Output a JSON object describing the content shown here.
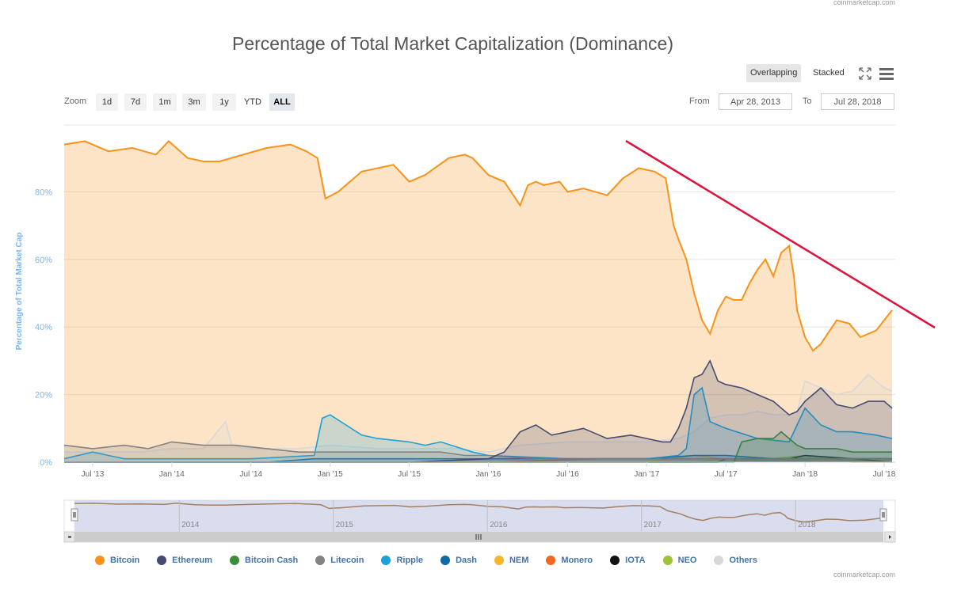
{
  "source": "coinmarketcap.com",
  "toolbar": {
    "zoom_label": "Zoom",
    "zoom_buttons": [
      "1d",
      "7d",
      "1m",
      "3m",
      "1y",
      "YTD",
      "ALL"
    ],
    "active_zoom": "ALL",
    "mode_overlapping": "Overlapping",
    "mode_stacked": "Stacked",
    "from_label": "From",
    "to_label": "To",
    "from_value": "Apr 28, 2013",
    "to_value": "Jul 28, 2018"
  },
  "chart_data": {
    "type": "area",
    "title": "Percentage of Total Market Capitalization (Dominance)",
    "ylabel": "Percentage of Total Market Cap",
    "xlabel": "",
    "ylim": [
      0,
      100
    ],
    "y_ticks": [
      "0%",
      "20%",
      "40%",
      "60%",
      "80%"
    ],
    "x_ticks": [
      "Jul '13",
      "Jan '14",
      "Jul '14",
      "Jan '15",
      "Jul '15",
      "Jan '16",
      "Jul '16",
      "Jan '17",
      "Jul '17",
      "Jan '18",
      "Jul '18"
    ],
    "x_start": "2013-04-28",
    "x_end": "2018-07-28",
    "legend_position": "bottom",
    "series": [
      {
        "name": "Bitcoin",
        "color": "#f7931a",
        "x": [
          2013.32,
          2013.45,
          2013.6,
          2013.75,
          2013.9,
          2013.98,
          2014.1,
          2014.2,
          2014.3,
          2014.45,
          2014.6,
          2014.75,
          2014.85,
          2014.92,
          2014.97,
          2015.05,
          2015.2,
          2015.4,
          2015.5,
          2015.6,
          2015.75,
          2015.85,
          2015.9,
          2016.0,
          2016.1,
          2016.2,
          2016.25,
          2016.3,
          2016.35,
          2016.45,
          2016.5,
          2016.6,
          2016.75,
          2016.85,
          2016.95,
          2017.05,
          2017.12,
          2017.17,
          2017.2,
          2017.25,
          2017.3,
          2017.35,
          2017.4,
          2017.45,
          2017.5,
          2017.55,
          2017.6,
          2017.65,
          2017.7,
          2017.75,
          2017.8,
          2017.85,
          2017.9,
          2017.93,
          2017.95,
          2018.0,
          2018.05,
          2018.1,
          2018.2,
          2018.28,
          2018.35,
          2018.45,
          2018.55
        ],
        "values": [
          94,
          95,
          92,
          93,
          91,
          95,
          90,
          89,
          89,
          91,
          93,
          94,
          92,
          90,
          78,
          80,
          86,
          88,
          83,
          85,
          90,
          91,
          90,
          85,
          83,
          76,
          82,
          83,
          82,
          83,
          80,
          81,
          79,
          84,
          87,
          86,
          84,
          70,
          66,
          60,
          50,
          42,
          38,
          45,
          49,
          48,
          48,
          53,
          57,
          60,
          55,
          62,
          64,
          55,
          45,
          37,
          33,
          35,
          42,
          41,
          37,
          39,
          45
        ]
      },
      {
        "name": "Ethereum",
        "color": "#454b73",
        "x": [
          2013.32,
          2015.5,
          2016.0,
          2016.1,
          2016.2,
          2016.3,
          2016.4,
          2016.6,
          2016.75,
          2016.9,
          2017.0,
          2017.1,
          2017.15,
          2017.2,
          2017.25,
          2017.3,
          2017.35,
          2017.4,
          2017.45,
          2017.5,
          2017.6,
          2017.7,
          2017.8,
          2017.9,
          2017.95,
          2018.0,
          2018.05,
          2018.1,
          2018.2,
          2018.3,
          2018.4,
          2018.5,
          2018.55
        ],
        "values": [
          0,
          0,
          1,
          3,
          9,
          11,
          8,
          10,
          7,
          8,
          7,
          6,
          6,
          10,
          16,
          25,
          26,
          30,
          24,
          23,
          22,
          20,
          18,
          14,
          15,
          18,
          20,
          22,
          17,
          16,
          18,
          18,
          16
        ]
      },
      {
        "name": "Bitcoin Cash",
        "color": "#3c8c3c",
        "x": [
          2013.32,
          2017.55,
          2017.6,
          2017.7,
          2017.8,
          2017.85,
          2017.9,
          2017.95,
          2018.0,
          2018.1,
          2018.2,
          2018.3,
          2018.4,
          2018.5,
          2018.55
        ],
        "values": [
          0,
          0,
          6,
          7,
          7,
          9,
          7,
          5,
          4,
          4,
          4,
          3,
          3,
          3,
          3
        ]
      },
      {
        "name": "Litecoin",
        "color": "#838383",
        "x": [
          2013.32,
          2013.5,
          2013.7,
          2013.85,
          2014.0,
          2014.2,
          2014.4,
          2014.6,
          2014.8,
          2015.0,
          2015.2,
          2015.5,
          2015.7,
          2015.85,
          2016.0,
          2016.3,
          2016.5,
          2016.8,
          2017.0,
          2017.3,
          2017.6,
          2017.9,
          2018.0,
          2018.3,
          2018.55
        ],
        "values": [
          5,
          4,
          5,
          4,
          6,
          5,
          5,
          4,
          3,
          3,
          3,
          3,
          3,
          2,
          2,
          1,
          1,
          1,
          1,
          1,
          1,
          1,
          1,
          1,
          1
        ]
      },
      {
        "name": "Ripple",
        "color": "#1ba0d8",
        "x": [
          2013.32,
          2013.5,
          2013.6,
          2013.7,
          2014.0,
          2014.5,
          2014.9,
          2014.95,
          2015.0,
          2015.1,
          2015.2,
          2015.3,
          2015.5,
          2015.6,
          2015.7,
          2015.9,
          2016.0,
          2016.5,
          2017.0,
          2017.2,
          2017.25,
          2017.3,
          2017.35,
          2017.4,
          2017.5,
          2017.7,
          2017.9,
          2017.95,
          2018.0,
          2018.1,
          2018.2,
          2018.3,
          2018.45,
          2018.55
        ],
        "values": [
          1,
          3,
          2,
          1,
          1,
          1,
          2,
          13,
          14,
          11,
          8,
          7,
          6,
          5,
          6,
          3,
          2,
          1,
          1,
          2,
          4,
          20,
          22,
          12,
          10,
          7,
          6,
          11,
          16,
          11,
          9,
          9,
          8,
          7
        ]
      },
      {
        "name": "Dash",
        "color": "#0f6aa8",
        "x": [
          2013.32,
          2014.6,
          2014.9,
          2015.5,
          2016.0,
          2016.5,
          2017.0,
          2017.3,
          2017.5,
          2017.8,
          2018.0,
          2018.3,
          2018.55
        ],
        "values": [
          0,
          0,
          1,
          1,
          1,
          1,
          1,
          2,
          2,
          1,
          1,
          1,
          1
        ]
      },
      {
        "name": "NEM",
        "color": "#f7b52d",
        "x": [
          2013.32,
          2015.3,
          2016.0,
          2017.0,
          2017.3,
          2017.5,
          2017.8,
          2018.0,
          2018.3,
          2018.55
        ],
        "values": [
          0,
          0,
          0,
          0,
          2,
          1,
          1,
          1,
          0,
          0
        ]
      },
      {
        "name": "Monero",
        "color": "#f26822",
        "x": [
          2013.32,
          2014.4,
          2015.0,
          2016.0,
          2016.7,
          2017.0,
          2017.5,
          2018.0,
          2018.55
        ],
        "values": [
          0,
          0,
          0,
          0,
          1,
          1,
          1,
          1,
          1
        ]
      },
      {
        "name": "IOTA",
        "color": "#111111",
        "x": [
          2013.32,
          2017.45,
          2017.5,
          2017.9,
          2018.0,
          2018.3,
          2018.55
        ],
        "values": [
          0,
          0,
          1,
          1,
          2,
          1,
          0
        ]
      },
      {
        "name": "NEO",
        "color": "#9ec336",
        "x": [
          2013.32,
          2017.3,
          2017.5,
          2017.8,
          2018.0,
          2018.3,
          2018.55
        ],
        "values": [
          0,
          0,
          1,
          1,
          2,
          1,
          1
        ]
      },
      {
        "name": "Others",
        "color": "#d8d8d8",
        "x": [
          2013.32,
          2013.5,
          2013.8,
          2014.0,
          2014.2,
          2014.34,
          2014.38,
          2014.5,
          2014.8,
          2015.0,
          2015.3,
          2015.6,
          2015.8,
          2016.0,
          2016.2,
          2016.5,
          2016.8,
          2017.0,
          2017.2,
          2017.3,
          2017.4,
          2017.5,
          2017.6,
          2017.7,
          2017.8,
          2017.9,
          2017.95,
          2018.0,
          2018.1,
          2018.2,
          2018.3,
          2018.4,
          2018.5,
          2018.55
        ],
        "values": [
          3,
          3,
          3,
          4,
          4,
          12,
          5,
          4,
          4,
          5,
          4,
          4,
          4,
          3,
          5,
          6,
          6,
          6,
          7,
          9,
          13,
          14,
          14,
          15,
          14,
          14,
          15,
          24,
          22,
          20,
          21,
          26,
          22,
          21
        ]
      }
    ],
    "navigator": {
      "x_ticks": [
        "2014",
        "2015",
        "2016",
        "2017",
        "2018"
      ]
    },
    "annotation": "Downtrend line drawn across Bitcoin dominance peaks"
  }
}
